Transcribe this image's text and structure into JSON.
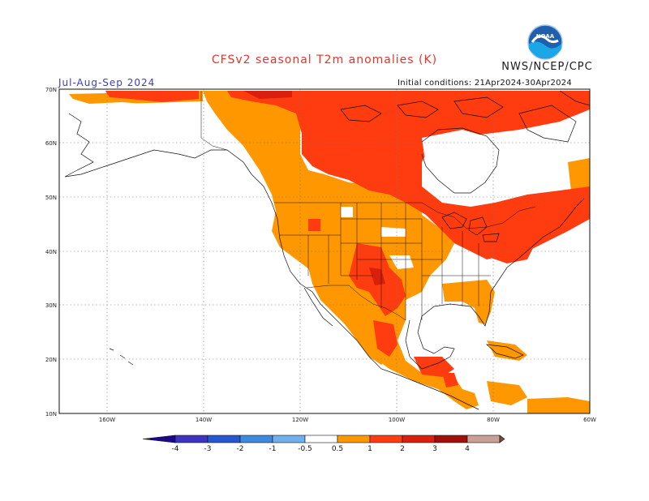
{
  "title": "CFSv2 seasonal T2m anomalies (K)",
  "agency": "NWS/NCEP/CPC",
  "logo_text": "NOAA",
  "season": "Jul-Aug-Sep 2024",
  "initial_conditions": "Initial conditions: 21Apr2024-30Apr2024",
  "lat_labels": [
    "70N",
    "60N",
    "50N",
    "40N",
    "30N",
    "20N",
    "10N"
  ],
  "lon_labels": [
    "160W",
    "140W",
    "120W",
    "100W",
    "80W",
    "60W"
  ],
  "colorbar": {
    "labels": [
      "-4",
      "-3",
      "-2",
      "-1",
      "-0.5",
      "0.5",
      "1",
      "2",
      "3",
      "4"
    ],
    "colors": [
      "#1a0a8a",
      "#3e33c0",
      "#2458d0",
      "#3c8be0",
      "#6fb0ee",
      "#ffffff",
      "#ff9800",
      "#ff3b10",
      "#d8200c",
      "#a00f0a",
      "#c8a095",
      "#7a4a3a"
    ]
  },
  "colors": {
    "land_line": "#111111",
    "grid": "#777777",
    "weak_warm": "#ff9800",
    "mod_warm": "#ff3b10",
    "strong_warm": "#d8200c"
  }
}
